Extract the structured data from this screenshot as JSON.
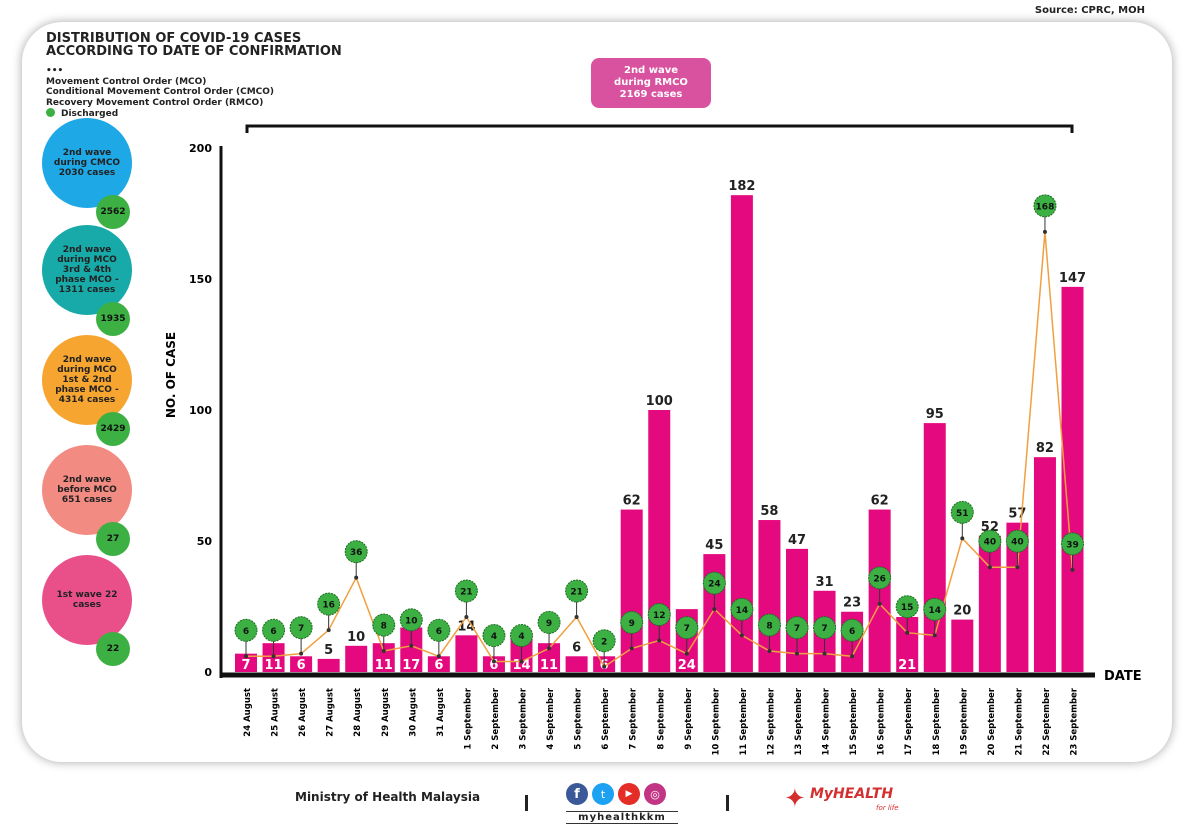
{
  "source": "Source: CPRC, MOH",
  "legend": {
    "items": [
      "Movement Control Order (MCO)",
      "Conditional Movement Control Order (CMCO)",
      "Recovery Movement Control Order (RMCO)"
    ],
    "discharged": "Discharged",
    "dots": "•••"
  },
  "bubbles": [
    {
      "label": "2nd wave during CMCO 2030 cases",
      "discharged": "2562",
      "color": "#1ea8e6"
    },
    {
      "label": "2nd wave during MCO 3rd & 4th phase MCO - 1311 cases",
      "discharged": "1935",
      "color": "#17aaa8"
    },
    {
      "label": "2nd wave during MCO 1st & 2nd phase MCO - 4314 cases",
      "discharged": "2429",
      "color": "#f7a531"
    },
    {
      "label": "2nd wave before MCO 651 cases",
      "discharged": "27",
      "color": "#f28b82"
    },
    {
      "label": "1st wave 22 cases",
      "discharged": "22",
      "color": "#e9508a"
    }
  ],
  "wave_box": "2nd wave\nduring RMCO\n2169 cases",
  "chart_data": {
    "type": "bar",
    "title": "DISTRIBUTION OF COVID-19 CASES ACCORDING TO DATE OF CONFIRMATION",
    "xlabel": "DATE",
    "ylabel": "NO. OF CASE",
    "ylim": [
      0,
      200
    ],
    "yticks": [
      0,
      50,
      100,
      150,
      200
    ],
    "categories": [
      "24 August",
      "25 August",
      "26 August",
      "27 August",
      "28 August",
      "29 August",
      "30 August",
      "31 August",
      "1 September",
      "2 September",
      "3 September",
      "4 September",
      "5 September",
      "6 September",
      "7 September",
      "8 September",
      "9 September",
      "10 September",
      "11 September",
      "12 September",
      "13 September",
      "14 September",
      "15 September",
      "16 September",
      "17 September",
      "18 September",
      "19 September",
      "20 September",
      "21 September",
      "22 September",
      "23 September"
    ],
    "series": [
      {
        "name": "Cases",
        "type": "bar",
        "color": "#e5097f",
        "values": [
          7,
          11,
          6,
          5,
          10,
          11,
          17,
          6,
          14,
          6,
          14,
          11,
          6,
          6,
          62,
          100,
          24,
          45,
          182,
          58,
          47,
          31,
          23,
          62,
          21,
          95,
          20,
          52,
          57,
          82,
          147
        ]
      },
      {
        "name": "Discharged",
        "type": "line",
        "color": "#f0a040",
        "values": [
          6,
          6,
          7,
          16,
          36,
          8,
          10,
          6,
          21,
          4,
          4,
          9,
          21,
          2,
          9,
          12,
          7,
          24,
          14,
          8,
          7,
          7,
          6,
          26,
          15,
          14,
          51,
          40,
          40,
          168,
          39
        ]
      }
    ]
  },
  "footer": {
    "ministry": "Ministry of Health Malaysia",
    "social": "myhealthkkm",
    "brand": "MyHEALTH",
    "brand_sub": "for life"
  }
}
